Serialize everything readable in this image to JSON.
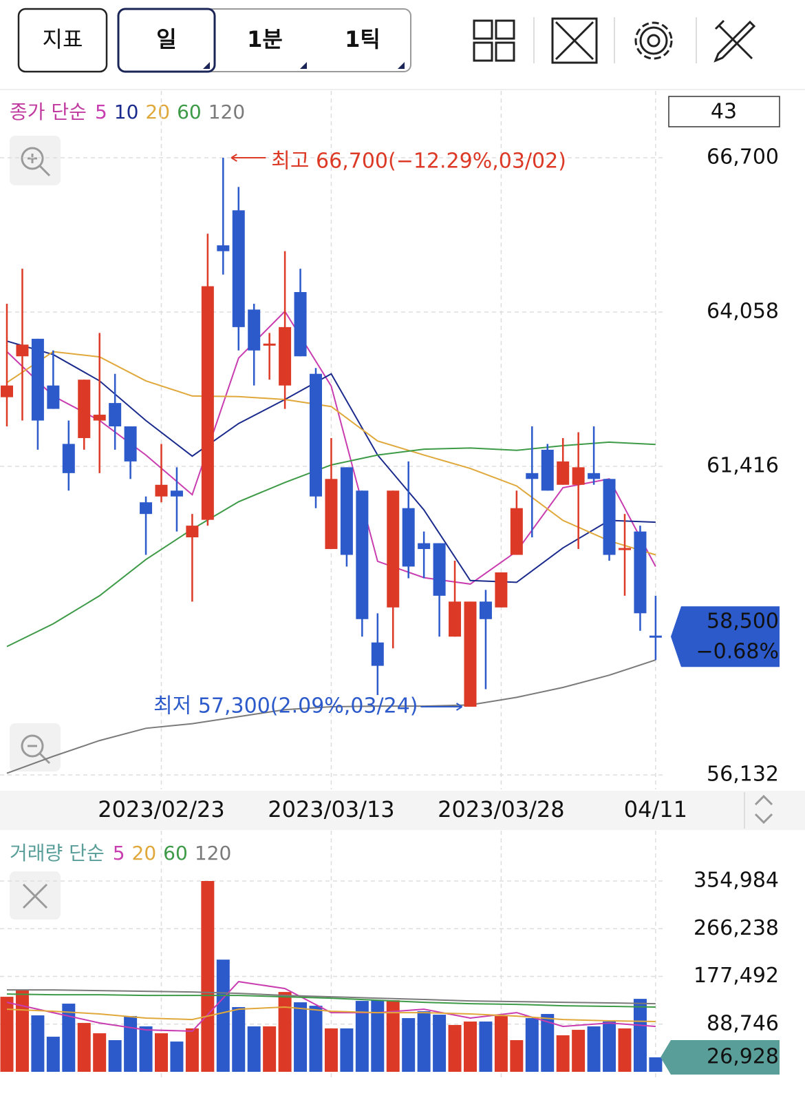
{
  "toolbar": {
    "indicator": "지표",
    "periods": [
      "일",
      "1분",
      "1틱"
    ]
  },
  "chart_data": [
    {
      "type": "candlestick",
      "legend_title": "종가 단순",
      "count": 43,
      "up_color": "#dc3a26",
      "down_color": "#2c5acb",
      "open": [
        62600,
        63300,
        63600,
        62800,
        61800,
        61900,
        62200,
        62500,
        62100,
        60800,
        60900,
        61000,
        60200,
        60500,
        65200,
        65800,
        64100,
        63500,
        62800,
        64400,
        63000,
        60000,
        61400,
        61000,
        58400,
        59000,
        60700,
        60100,
        60100,
        58500,
        57300,
        59100,
        59000,
        59900,
        61300,
        61700,
        61100,
        61100,
        61300,
        61200,
        60000,
        60300,
        58500
      ],
      "high": [
        64200,
        64800,
        63600,
        63400,
        62200,
        62900,
        63700,
        63000,
        62100,
        60900,
        61800,
        61400,
        60600,
        65400,
        66700,
        66200,
        64200,
        63700,
        65100,
        64800,
        63100,
        61900,
        61400,
        61000,
        58900,
        61000,
        61500,
        60300,
        60100,
        59800,
        59100,
        59300,
        59600,
        61000,
        62100,
        61800,
        61900,
        62000,
        62100,
        61200,
        60600,
        60400,
        59200
      ],
      "low": [
        62100,
        62200,
        61700,
        62400,
        61000,
        61700,
        61300,
        61700,
        61200,
        59900,
        60800,
        60300,
        59100,
        60400,
        64700,
        63400,
        62800,
        62900,
        62400,
        63300,
        60700,
        60000,
        59700,
        58500,
        57500,
        58300,
        59500,
        59500,
        58500,
        58500,
        57300,
        57600,
        59000,
        59900,
        60200,
        61000,
        61100,
        60000,
        61100,
        59800,
        59200,
        58600,
        58100
      ],
      "close": [
        62800,
        63500,
        62200,
        62400,
        61300,
        62900,
        62300,
        62100,
        61500,
        60600,
        61100,
        60900,
        60400,
        64500,
        65100,
        63800,
        63400,
        63500,
        63800,
        63300,
        60900,
        61200,
        59900,
        58800,
        58000,
        61000,
        59700,
        60000,
        59200,
        59100,
        59100,
        58800,
        59600,
        60700,
        61200,
        61000,
        61500,
        61400,
        61200,
        59900,
        60000,
        58900,
        58500
      ],
      "x_labels": [
        {
          "index": 10,
          "label": "2023/02/23"
        },
        {
          "index": 21,
          "label": "2023/03/13"
        },
        {
          "index": 32,
          "label": "2023/03/28"
        },
        {
          "index": 42,
          "label": "04/11"
        }
      ],
      "ylim": [
        56132,
        66700
      ],
      "yticks": [
        {
          "value": 66700,
          "label": "66,700"
        },
        {
          "value": 64058,
          "label": "64,058"
        },
        {
          "value": 61416,
          "label": "61,416"
        },
        {
          "value": 56132,
          "label": "56,132"
        }
      ],
      "grid": true,
      "annotations": [
        {
          "text": "최고 66,700(−12.29%,03/02)",
          "index": 14,
          "value": 66700,
          "color": "#dc3a26",
          "side": "right"
        },
        {
          "text": "최저 57,300(2.09%,03/24)",
          "index": 30,
          "value": 57300,
          "color": "#2c5acb",
          "side": "left"
        }
      ],
      "current": {
        "value": 58500,
        "label": "58,500",
        "change": "−0.68%",
        "color": "#2c5acb"
      },
      "series": [
        {
          "name": "5",
          "color": "#c93cb0",
          "x": [
            0,
            3,
            6,
            9,
            12,
            15,
            18,
            21,
            24,
            27,
            30,
            33,
            36,
            39,
            42
          ],
          "values": [
            63380,
            62620,
            62200,
            61610,
            60930,
            63270,
            64070,
            62790,
            59790,
            59510,
            59400,
            59960,
            61050,
            61200,
            59700
          ]
        },
        {
          "name": "10",
          "color": "#1a2a8c",
          "x": [
            0,
            3,
            6,
            9,
            12,
            15,
            18,
            21,
            24,
            27,
            30,
            33,
            36,
            39,
            42
          ],
          "values": [
            63560,
            63330,
            62880,
            62200,
            61590,
            62150,
            62560,
            63000,
            61610,
            60670,
            59460,
            59430,
            60020,
            60490,
            60460
          ]
        },
        {
          "name": "20",
          "color": "#e0a83a",
          "x": [
            0,
            3,
            6,
            9,
            12,
            15,
            18,
            21,
            24,
            27,
            30,
            33,
            36,
            39,
            42
          ],
          "values": [
            62850,
            63380,
            63290,
            62880,
            62620,
            62610,
            62560,
            62440,
            61850,
            61610,
            61380,
            61080,
            60490,
            60140,
            59900
          ]
        },
        {
          "name": "60",
          "color": "#3d9a46",
          "x": [
            0,
            3,
            6,
            9,
            12,
            15,
            18,
            21,
            24,
            27,
            30,
            33,
            36,
            39,
            42
          ],
          "values": [
            58330,
            58720,
            59200,
            59820,
            60340,
            60810,
            61140,
            61440,
            61610,
            61710,
            61730,
            61690,
            61770,
            61830,
            61790
          ]
        },
        {
          "name": "120",
          "color": "#7a7a7a",
          "x": [
            0,
            3,
            6,
            9,
            12,
            15,
            18,
            21,
            24,
            27,
            30,
            33,
            36,
            39,
            42
          ],
          "values": [
            56160,
            56450,
            56720,
            56930,
            57010,
            57130,
            57250,
            57300,
            57310,
            57310,
            57330,
            57460,
            57630,
            57840,
            58100
          ]
        }
      ]
    },
    {
      "type": "bar",
      "legend_title": "거래량 단순",
      "values": [
        139600,
        152400,
        105000,
        65300,
        126800,
        90900,
        71700,
        58900,
        103700,
        84500,
        71700,
        56300,
        80700,
        354984,
        208700,
        120400,
        84500,
        84500,
        148500,
        129300,
        122900,
        80700,
        80700,
        131900,
        133200,
        133200,
        99900,
        112700,
        106300,
        87100,
        93500,
        93500,
        103700,
        58900,
        99900,
        107600,
        67900,
        78100,
        84500,
        93500,
        80700,
        135700,
        26928
      ],
      "ylim": [
        0,
        354984
      ],
      "yticks": [
        {
          "value": 354984,
          "label": "354,984"
        },
        {
          "value": 266238,
          "label": "266,238"
        },
        {
          "value": 177492,
          "label": "177,492"
        },
        {
          "value": 88746,
          "label": "88,746"
        }
      ],
      "grid": true,
      "current": {
        "value": 26928,
        "label": "26,928",
        "color": "#5a9e9a"
      },
      "series": [
        {
          "name": "5",
          "color": "#c93cb0",
          "x": [
            0,
            3,
            6,
            9,
            12,
            15,
            18,
            21,
            24,
            27,
            30,
            33,
            36,
            39,
            42
          ],
          "values": [
            129300,
            110100,
            90900,
            78100,
            75600,
            167800,
            155000,
            110100,
            110100,
            116500,
            99900,
            110100,
            84500,
            90900,
            84500
          ]
        },
        {
          "name": "20",
          "color": "#e0a83a",
          "x": [
            0,
            3,
            6,
            9,
            12,
            15,
            18,
            21,
            24,
            27,
            30,
            33,
            36,
            39,
            42
          ],
          "values": [
            116500,
            112700,
            107600,
            99900,
            97300,
            116500,
            120400,
            112700,
            110100,
            110100,
            107600,
            103700,
            97300,
            94800,
            93500
          ]
        },
        {
          "name": "60",
          "color": "#3d9a46",
          "x": [
            0,
            3,
            6,
            9,
            12,
            15,
            18,
            21,
            24,
            27,
            30,
            33,
            36,
            39,
            42
          ],
          "values": [
            144700,
            143400,
            143400,
            142100,
            142100,
            142100,
            139600,
            137000,
            133200,
            129300,
            126800,
            125500,
            122900,
            121700,
            120400
          ]
        },
        {
          "name": "120",
          "color": "#7a7a7a",
          "x": [
            0,
            3,
            6,
            9,
            12,
            15,
            18,
            21,
            24,
            27,
            30,
            33,
            36,
            39,
            42
          ],
          "values": [
            152400,
            152400,
            151100,
            149800,
            148500,
            146000,
            142100,
            139600,
            137000,
            134500,
            131900,
            130600,
            129300,
            128100,
            126800
          ]
        }
      ]
    }
  ]
}
